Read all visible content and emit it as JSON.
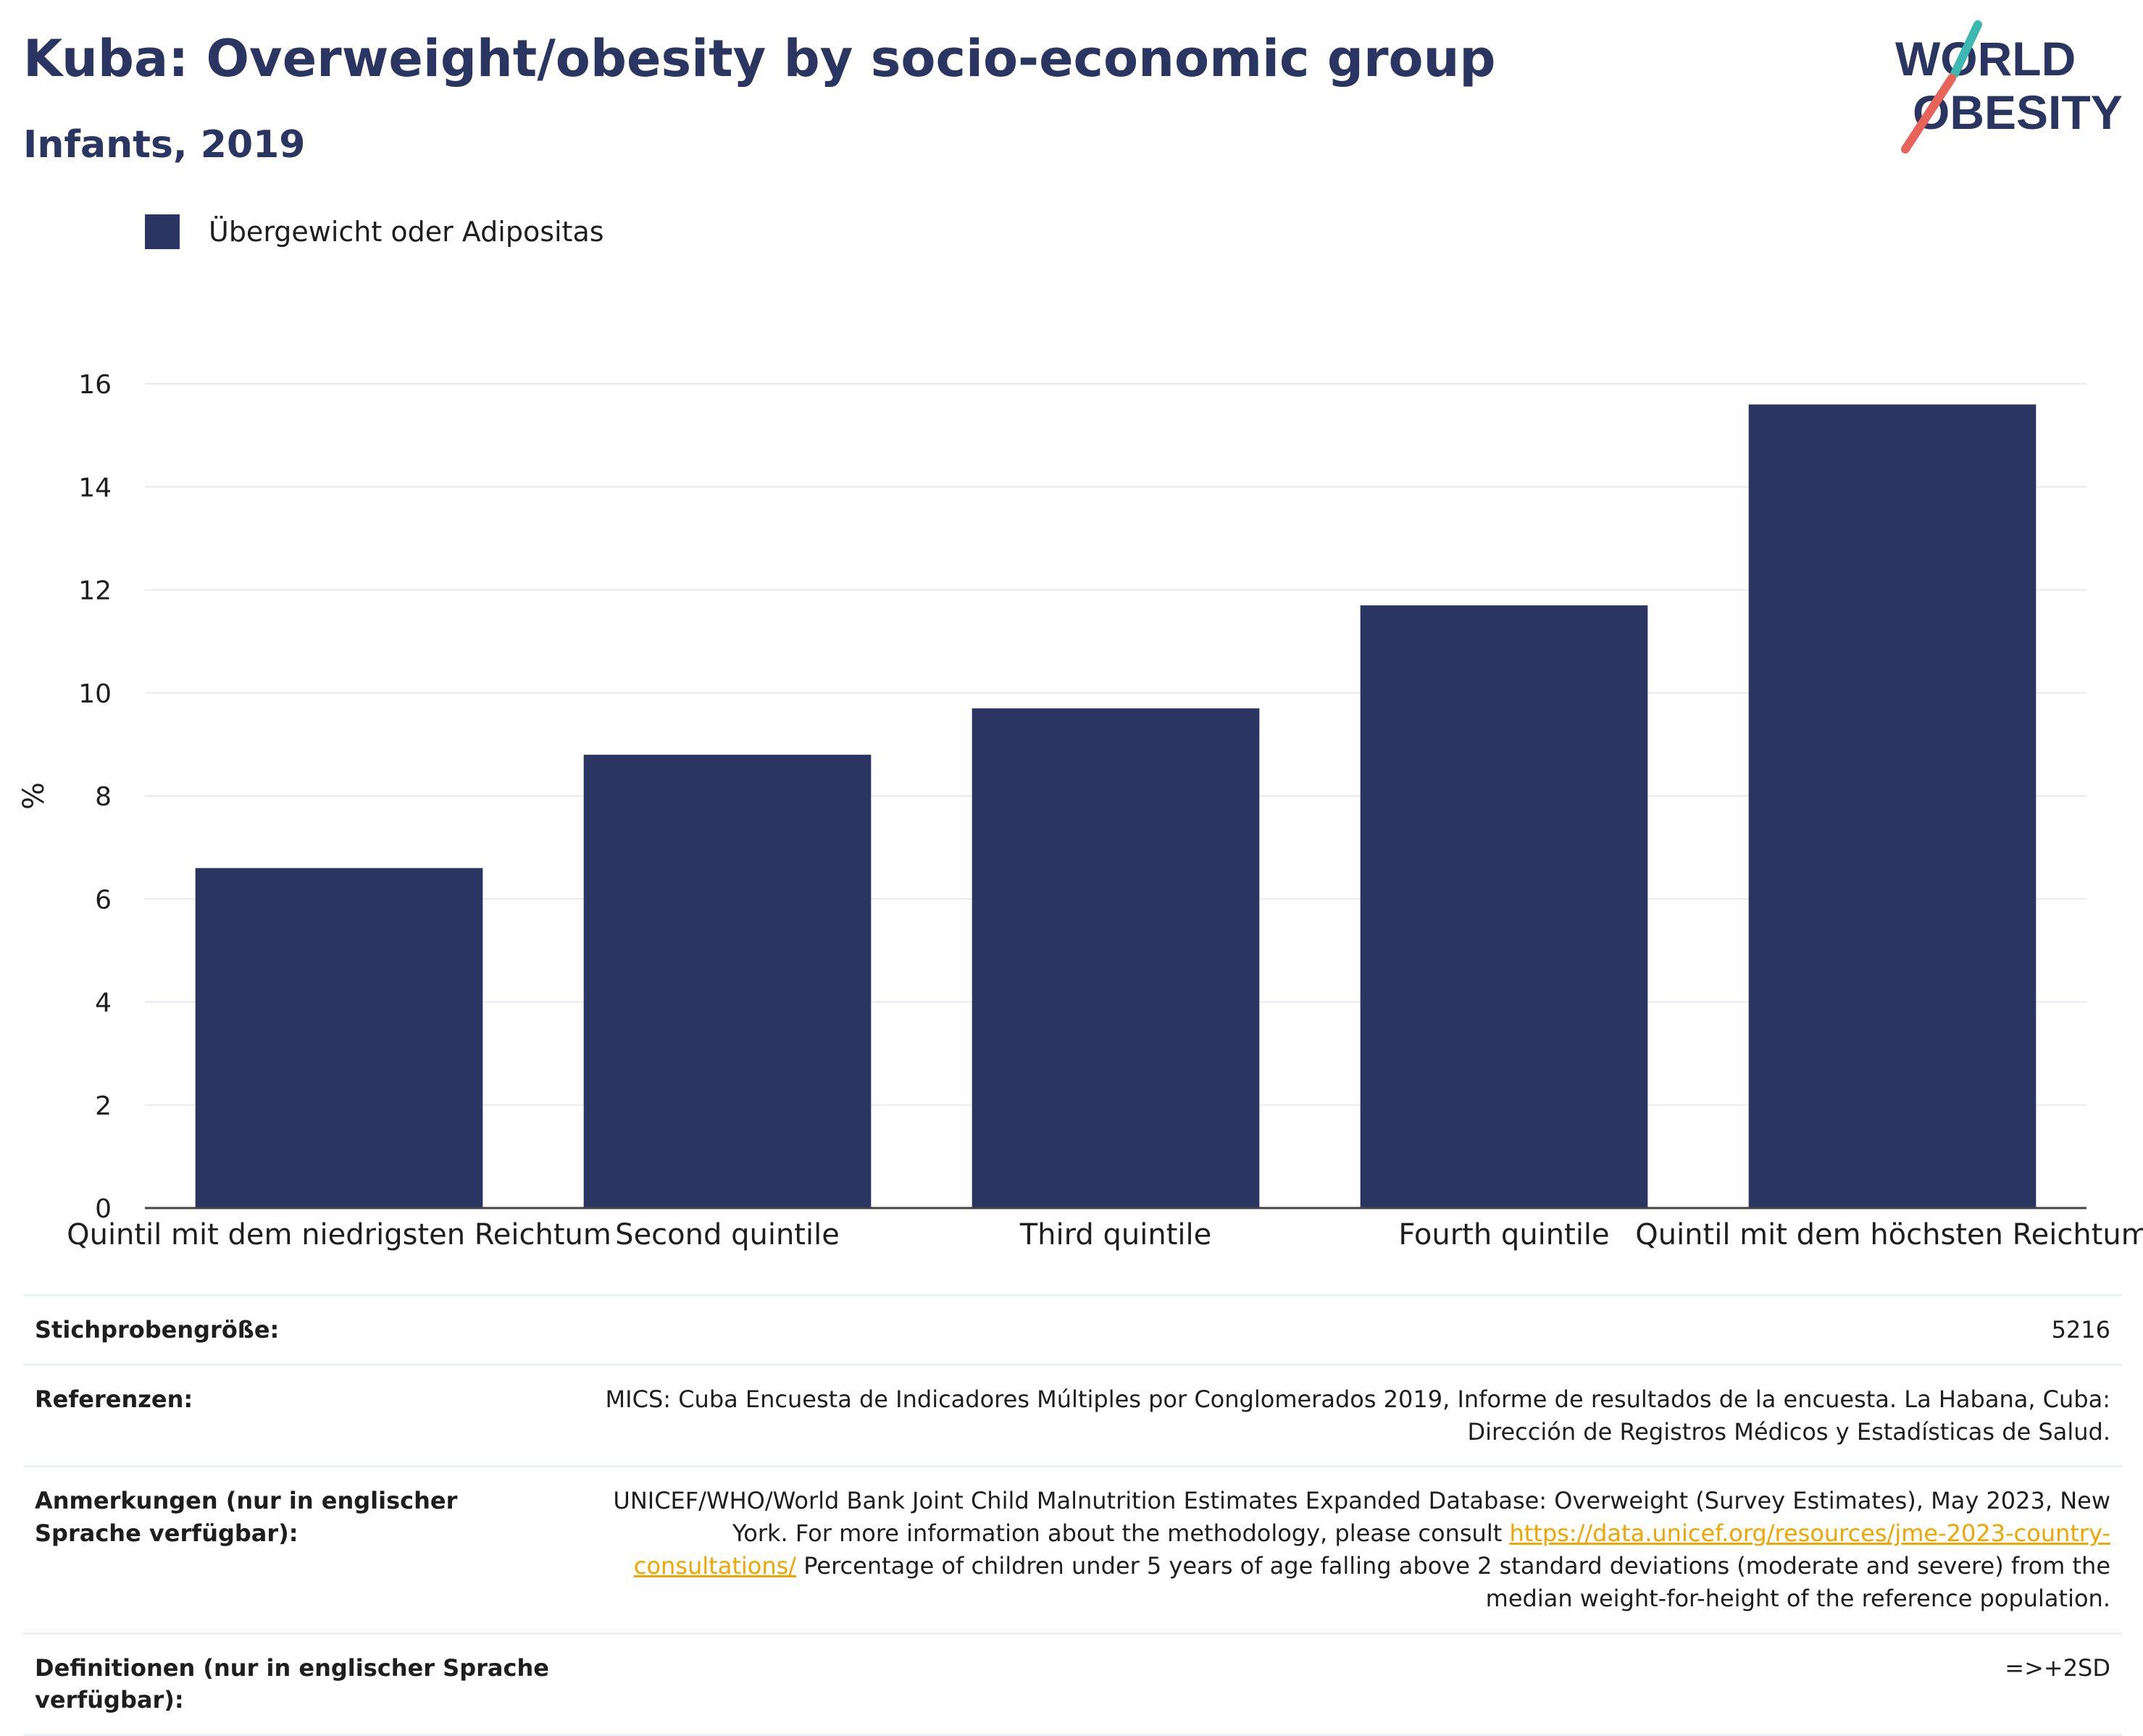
{
  "header": {
    "title": "Kuba: Overweight/obesity by socio-economic group",
    "subtitle": "Infants, 2019"
  },
  "logo": {
    "line1": "WORLD",
    "line2": "OBESITY",
    "accent_teal": "#3cb8b0",
    "accent_red": "#e8645a"
  },
  "legend": {
    "label": "Übergewicht oder Adipositas",
    "color": "#2a3561"
  },
  "chart_data": {
    "type": "bar",
    "categories": [
      "Quintil mit dem niedrigsten Reichtum",
      "Second quintile",
      "Third quintile",
      "Fourth quintile",
      "Quintil mit dem höchsten Reichtum"
    ],
    "series": [
      {
        "name": "Übergewicht oder Adipositas",
        "values": [
          6.6,
          8.8,
          9.7,
          11.7,
          15.6
        ],
        "color": "#2a3561"
      }
    ],
    "ylabel": "%",
    "ylim": [
      0,
      16
    ],
    "yticks": [
      0,
      2,
      4,
      6,
      8,
      10,
      12,
      14,
      16
    ],
    "grid": true,
    "legend_position": "top-left"
  },
  "info": {
    "sample_size": {
      "label": "Stichprobengröße:",
      "value": "5216"
    },
    "references": {
      "label": "Referenzen:",
      "value": "MICS: Cuba Encuesta de Indicadores Múltiples por Conglomerados 2019, Informe de resultados de la encuesta. La Habana, Cuba: Dirección de Registros Médicos y Estadísticas de Salud."
    },
    "notes": {
      "label": "Anmerkungen (nur in englischer Sprache verfügbar):",
      "text_before": "UNICEF/WHO/World Bank Joint Child Malnutrition Estimates Expanded Database: Overweight (Survey Estimates), May 2023, New York. For more information about the methodology, please consult ",
      "link": "https://data.unicef.org/resources/jme-2023-country-consultations/",
      "text_after": " Percentage of children under 5 years of age falling above 2 standard deviations (moderate and severe) from the median weight-for-height of the reference population."
    },
    "definitions": {
      "label": "Definitionen (nur in englischer Sprache verfügbar):",
      "value": "=>+2SD"
    }
  }
}
